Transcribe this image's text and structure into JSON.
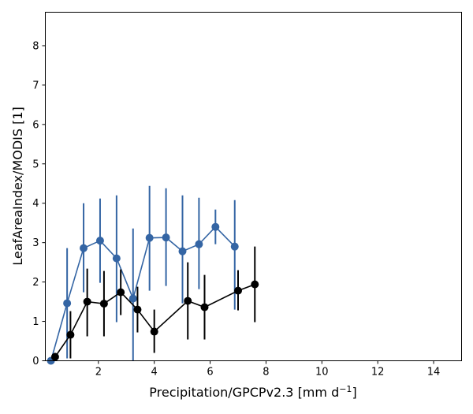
{
  "chart_data": {
    "type": "line",
    "title": "",
    "xlabel": "Precipitation/GPCPv2.3 [mm d",
    "xlabel_sup": "−1",
    "xlabel_end": "]",
    "ylabel": "LeafAreaIndex/MODIS [1]",
    "xlim": [
      0.1,
      15.0
    ],
    "ylim": [
      0,
      8.85
    ],
    "xticks": [
      2,
      4,
      6,
      8,
      10,
      12,
      14
    ],
    "yticks": [
      0,
      1,
      2,
      3,
      4,
      5,
      6,
      7,
      8
    ],
    "xtick_labels": [
      "2",
      "4",
      "6",
      "8",
      "10",
      "12",
      "14"
    ],
    "ytick_labels": [
      "0",
      "1",
      "2",
      "3",
      "4",
      "5",
      "6",
      "7",
      "8"
    ],
    "grid": false,
    "legend": "none",
    "series": [
      {
        "color": "#3465a4",
        "x": [
          0.3,
          0.88,
          1.47,
          2.06,
          2.65,
          3.24,
          3.83,
          4.42,
          5.01,
          5.6,
          6.19,
          6.88
        ],
        "y": [
          0.0,
          1.46,
          2.86,
          3.05,
          2.6,
          1.58,
          3.12,
          3.13,
          2.78,
          2.96,
          3.4,
          2.9
        ],
        "err_low": [
          0.0,
          0.06,
          1.74,
          1.98,
          0.98,
          0.0,
          1.78,
          1.9,
          1.46,
          1.82,
          2.96,
          1.3
        ],
        "err_high": [
          0.0,
          2.86,
          4.0,
          4.12,
          4.2,
          3.36,
          4.44,
          4.38,
          4.2,
          4.14,
          3.84,
          4.08
        ]
      },
      {
        "color": "#000000",
        "x": [
          0.45,
          1.0,
          1.6,
          2.2,
          2.8,
          3.4,
          4.0,
          5.2,
          5.8,
          7.0,
          7.6
        ],
        "y": [
          0.1,
          0.66,
          1.5,
          1.45,
          1.74,
          1.3,
          0.74,
          1.52,
          1.36,
          1.78,
          1.94
        ],
        "err_low": [
          0.0,
          0.06,
          0.62,
          0.62,
          1.16,
          0.72,
          0.2,
          0.54,
          0.54,
          1.28,
          0.98
        ],
        "err_high": [
          0.2,
          1.26,
          2.34,
          2.28,
          2.32,
          1.88,
          1.3,
          2.5,
          2.18,
          2.3,
          2.9
        ]
      }
    ]
  }
}
